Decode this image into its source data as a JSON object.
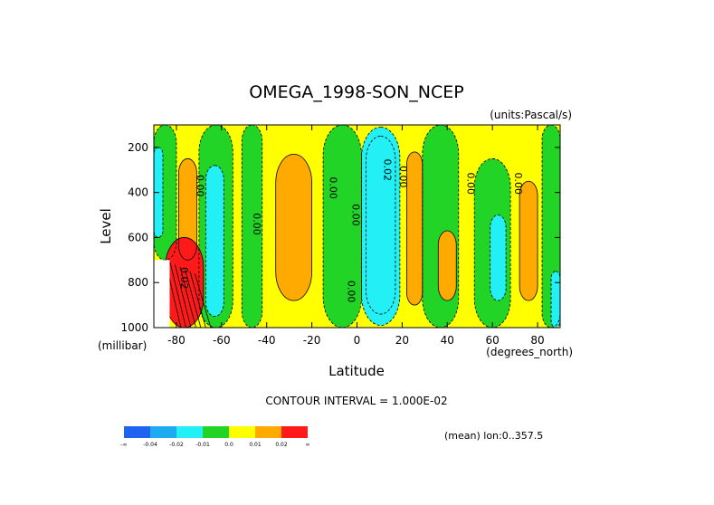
{
  "chart_data": {
    "type": "heatmap",
    "subtype": "filled-contour",
    "title": "OMEGA_1998-SON_NCEP",
    "units": "(units:Pascal/s)",
    "xlabel": "Latitude",
    "xunit": "(degrees_north)",
    "ylabel": "Level",
    "yunit": "(millibar)",
    "xlim": [
      -90,
      90
    ],
    "ylim": [
      1000,
      100
    ],
    "x_ticks": [
      -80,
      -60,
      -40,
      -20,
      0,
      20,
      40,
      60,
      80
    ],
    "y_ticks": [
      200,
      400,
      600,
      800,
      1000
    ],
    "contour_interval_text": "CONTOUR INTERVAL = 1.000E-02",
    "mean_text": "(mean) lon:0..357.5",
    "contour_labels": [
      {
        "text": "0.00",
        "lat": -71,
        "level": 370
      },
      {
        "text": "0.00",
        "lat": -46,
        "level": 540
      },
      {
        "text": "0.00",
        "lat": -12,
        "level": 380
      },
      {
        "text": "0.00",
        "lat": -2,
        "level": 500
      },
      {
        "text": "0.02",
        "lat": 12,
        "level": 300
      },
      {
        "text": "0.00",
        "lat": 19,
        "level": 330
      },
      {
        "text": "0.00",
        "lat": 49,
        "level": 360
      },
      {
        "text": "0.00",
        "lat": 70,
        "level": 360
      },
      {
        "text": "0.00",
        "lat": -4,
        "level": 840
      },
      {
        "text": "0.02",
        "lat": -78,
        "level": 780
      }
    ],
    "colorbar": {
      "colors": [
        "#1e64f0",
        "#1eaaf0",
        "#22f0f5",
        "#22d426",
        "#ffff00",
        "#ffaa00",
        "#ff1a1a"
      ],
      "labels": [
        "-∞",
        "-0.04",
        "-0.02",
        "-0.01",
        "0.0",
        "0.01",
        "0.02",
        "∞"
      ]
    },
    "regions": [
      {
        "name": "background",
        "value": 0.005,
        "lat": [
          -90,
          90
        ],
        "level": [
          100,
          1000
        ]
      },
      {
        "name": "green band far south",
        "value": -0.005,
        "lat": [
          -90,
          -80
        ],
        "level": [
          100,
          700
        ]
      },
      {
        "name": "cyan patch far south",
        "value": -0.015,
        "lat": [
          -90,
          -86
        ],
        "level": [
          200,
          600
        ]
      },
      {
        "name": "orange column -75",
        "value": 0.015,
        "lat": [
          -79,
          -71
        ],
        "level": [
          250,
          700
        ]
      },
      {
        "name": "green column -63",
        "value": -0.005,
        "lat": [
          -70,
          -55
        ],
        "level": [
          100,
          1000
        ]
      },
      {
        "name": "cyan column -63",
        "value": -0.015,
        "lat": [
          -67,
          -59
        ],
        "level": [
          280,
          950
        ]
      },
      {
        "name": "red polar surface",
        "value": 0.025,
        "lat": [
          -85,
          -68
        ],
        "level": [
          600,
          1000
        ]
      },
      {
        "name": "green column -48",
        "value": -0.005,
        "lat": [
          -51,
          -42
        ],
        "level": [
          100,
          1000
        ]
      },
      {
        "name": "orange cell -28",
        "value": 0.015,
        "lat": [
          -36,
          -20
        ],
        "level": [
          230,
          880
        ]
      },
      {
        "name": "green column -8",
        "value": -0.005,
        "lat": [
          -15,
          2
        ],
        "level": [
          100,
          1000
        ]
      },
      {
        "name": "blue cell +10",
        "value": -0.025,
        "lat": [
          4,
          17
        ],
        "level": [
          150,
          940
        ]
      },
      {
        "name": "cyan cell +10",
        "value": -0.015,
        "lat": [
          2,
          19
        ],
        "level": [
          110,
          990
        ]
      },
      {
        "name": "orange column +25",
        "value": 0.015,
        "lat": [
          22,
          29
        ],
        "level": [
          220,
          900
        ]
      },
      {
        "name": "green column +38",
        "value": -0.005,
        "lat": [
          29,
          45
        ],
        "level": [
          100,
          1000
        ]
      },
      {
        "name": "orange patch +40",
        "value": 0.015,
        "lat": [
          36,
          44
        ],
        "level": [
          570,
          880
        ]
      },
      {
        "name": "green column +60",
        "value": -0.005,
        "lat": [
          52,
          68
        ],
        "level": [
          250,
          1000
        ]
      },
      {
        "name": "cyan patch +62",
        "value": -0.015,
        "lat": [
          59,
          66
        ],
        "level": [
          500,
          880
        ]
      },
      {
        "name": "orange column +75",
        "value": 0.015,
        "lat": [
          72,
          80
        ],
        "level": [
          350,
          880
        ]
      },
      {
        "name": "green column +87",
        "value": -0.005,
        "lat": [
          82,
          90
        ],
        "level": [
          100,
          1000
        ]
      },
      {
        "name": "cyan patch +89",
        "value": -0.015,
        "lat": [
          86,
          90
        ],
        "level": [
          750,
          1000
        ]
      }
    ]
  }
}
